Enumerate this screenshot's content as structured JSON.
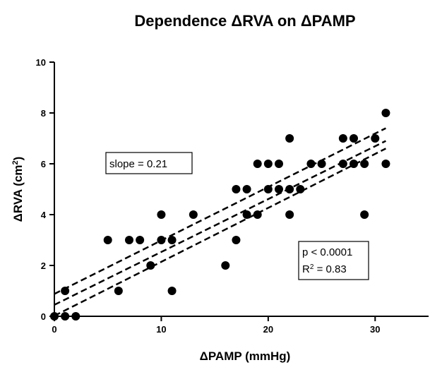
{
  "chart_data": {
    "type": "scatter",
    "title": "Dependence ΔRVA on ΔPAMP",
    "xlabel": "ΔPAMP (mmHg)",
    "ylabel_main": "ΔRVA (cm",
    "ylabel_sup": "2",
    "ylabel_end": ")",
    "xlim": [
      0,
      35
    ],
    "ylim": [
      0,
      10
    ],
    "xticks": [
      0,
      10,
      20,
      30
    ],
    "yticks": [
      0,
      2,
      4,
      6,
      8,
      10
    ],
    "grid": false,
    "points": [
      {
        "x": 0,
        "y": 0
      },
      {
        "x": 1,
        "y": 0
      },
      {
        "x": 2,
        "y": 0
      },
      {
        "x": 1,
        "y": 1
      },
      {
        "x": 5,
        "y": 3
      },
      {
        "x": 6,
        "y": 1
      },
      {
        "x": 7,
        "y": 3
      },
      {
        "x": 8,
        "y": 3
      },
      {
        "x": 9,
        "y": 2
      },
      {
        "x": 10,
        "y": 4
      },
      {
        "x": 10,
        "y": 3
      },
      {
        "x": 11,
        "y": 3
      },
      {
        "x": 11,
        "y": 1
      },
      {
        "x": 13,
        "y": 4
      },
      {
        "x": 16,
        "y": 2
      },
      {
        "x": 17,
        "y": 3
      },
      {
        "x": 17,
        "y": 5
      },
      {
        "x": 18,
        "y": 5
      },
      {
        "x": 18,
        "y": 4
      },
      {
        "x": 19,
        "y": 6
      },
      {
        "x": 19,
        "y": 4
      },
      {
        "x": 20,
        "y": 5
      },
      {
        "x": 20,
        "y": 6
      },
      {
        "x": 21,
        "y": 6
      },
      {
        "x": 21,
        "y": 5
      },
      {
        "x": 22,
        "y": 7
      },
      {
        "x": 22,
        "y": 5
      },
      {
        "x": 22,
        "y": 4
      },
      {
        "x": 23,
        "y": 5
      },
      {
        "x": 24,
        "y": 6
      },
      {
        "x": 25,
        "y": 6
      },
      {
        "x": 27,
        "y": 7
      },
      {
        "x": 27,
        "y": 6
      },
      {
        "x": 28,
        "y": 7
      },
      {
        "x": 28,
        "y": 6
      },
      {
        "x": 29,
        "y": 6
      },
      {
        "x": 29,
        "y": 4
      },
      {
        "x": 30,
        "y": 7
      },
      {
        "x": 31,
        "y": 8
      },
      {
        "x": 31,
        "y": 6
      }
    ],
    "regression_lines": [
      {
        "name": "fit",
        "x": [
          0,
          31
        ],
        "y": [
          0.45,
          6.9
        ]
      },
      {
        "name": "upper-ci",
        "x": [
          0,
          31
        ],
        "y": [
          0.88,
          7.4
        ]
      },
      {
        "name": "lower-ci",
        "x": [
          0,
          31
        ],
        "y": [
          0.02,
          6.6
        ]
      }
    ],
    "annotations": {
      "slope": "slope = 0.21",
      "pvalue": "p < 0.0001",
      "r2_main": "R",
      "r2_sup": "2",
      "r2_end": " = 0.83"
    }
  }
}
